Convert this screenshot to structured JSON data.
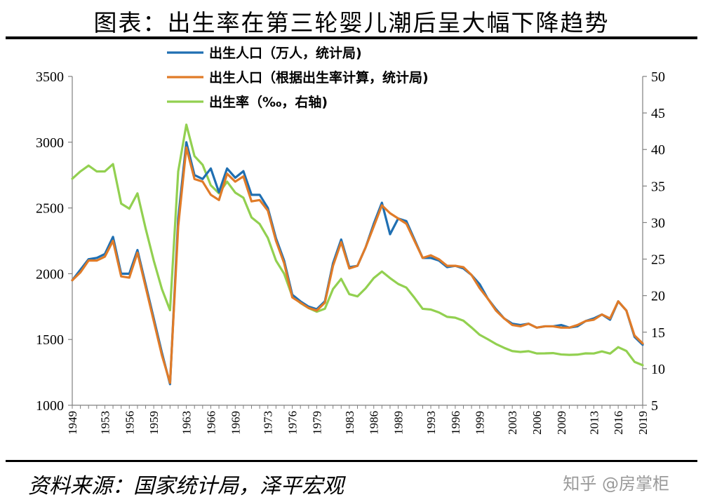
{
  "title": "图表：出生率在第三轮婴儿潮后呈大幅下降趋势",
  "source": "资料来源：国家统计局，泽平宏观",
  "watermark": "知乎 @房掌柜",
  "chart_data": {
    "type": "line",
    "x": [
      1949,
      1950,
      1951,
      1952,
      1953,
      1954,
      1955,
      1956,
      1957,
      1958,
      1959,
      1960,
      1961,
      1962,
      1963,
      1964,
      1965,
      1966,
      1967,
      1968,
      1969,
      1970,
      1971,
      1972,
      1973,
      1974,
      1975,
      1976,
      1977,
      1978,
      1979,
      1980,
      1981,
      1982,
      1983,
      1984,
      1985,
      1986,
      1987,
      1988,
      1989,
      1990,
      1991,
      1992,
      1993,
      1994,
      1995,
      1996,
      1997,
      1998,
      1999,
      2000,
      2001,
      2002,
      2003,
      2004,
      2005,
      2006,
      2007,
      2008,
      2009,
      2010,
      2011,
      2012,
      2013,
      2014,
      2015,
      2016,
      2017,
      2018,
      2019
    ],
    "x_tick_labels": [
      "1949",
      "1953",
      "1956",
      "1959",
      "1963",
      "1966",
      "1969",
      "1973",
      "1976",
      "1979",
      "1983",
      "1986",
      "1989",
      "1993",
      "1996",
      "1999",
      "2003",
      "2006",
      "2009",
      "2013",
      "2016",
      "2019"
    ],
    "left_axis": {
      "ylim": [
        1000,
        3500
      ],
      "ticks": [
        "1000",
        "1500",
        "2000",
        "2500",
        "3000",
        "3500"
      ]
    },
    "right_axis": {
      "ylim": [
        5,
        50
      ],
      "ticks": [
        "5",
        "10",
        "15",
        "20",
        "25",
        "30",
        "35",
        "40",
        "45",
        "50"
      ]
    },
    "series": [
      {
        "name": "出生人口（万人，统计局)",
        "axis": "left",
        "color": "#1f6fb2",
        "values": [
          1950,
          2030,
          2110,
          2120,
          2150,
          2280,
          2000,
          2000,
          2180,
          1920,
          1660,
          1400,
          1160,
          2420,
          3000,
          2750,
          2720,
          2800,
          2620,
          2800,
          2730,
          2780,
          2600,
          2600,
          2500,
          2270,
          2100,
          1840,
          1790,
          1750,
          1730,
          1790,
          2080,
          2260,
          2050,
          2060,
          2200,
          2380,
          2540,
          2300,
          2420,
          2400,
          2260,
          2120,
          2120,
          2100,
          2050,
          2060,
          2040,
          1990,
          1920,
          1810,
          1730,
          1660,
          1620,
          1610,
          1620,
          1590,
          1600,
          1600,
          1610,
          1590,
          1600,
          1640,
          1660,
          1690,
          1650,
          1790,
          1720,
          1520,
          1460
        ]
      },
      {
        "name": "出生人口（根据出生率计算，统计局)",
        "axis": "left",
        "color": "#e07b28",
        "values": [
          1950,
          2010,
          2100,
          2100,
          2130,
          2250,
          1980,
          1970,
          2160,
          1900,
          1640,
          1380,
          1170,
          2360,
          2960,
          2720,
          2700,
          2600,
          2560,
          2760,
          2700,
          2740,
          2550,
          2560,
          2480,
          2250,
          2080,
          1820,
          1780,
          1740,
          1720,
          1780,
          2060,
          2240,
          2040,
          2060,
          2200,
          2360,
          2520,
          2460,
          2420,
          2380,
          2250,
          2120,
          2140,
          2110,
          2060,
          2060,
          2050,
          1990,
          1890,
          1810,
          1720,
          1660,
          1610,
          1600,
          1620,
          1590,
          1600,
          1600,
          1590,
          1590,
          1610,
          1640,
          1650,
          1690,
          1660,
          1790,
          1720,
          1530,
          1470
        ]
      },
      {
        "name": "出生率（‰，右轴)",
        "axis": "right",
        "color": "#92d050",
        "values": [
          36.0,
          37.0,
          37.8,
          37.0,
          37.0,
          38.0,
          32.6,
          31.9,
          34.0,
          29.2,
          24.8,
          20.9,
          18.0,
          37.0,
          43.4,
          39.1,
          37.9,
          35.1,
          34.0,
          35.6,
          34.1,
          33.4,
          30.7,
          29.8,
          27.9,
          24.8,
          23.0,
          19.9,
          19.0,
          18.3,
          17.8,
          18.2,
          20.9,
          22.3,
          20.2,
          19.9,
          21.0,
          22.4,
          23.3,
          22.4,
          21.6,
          21.1,
          19.7,
          18.2,
          18.1,
          17.7,
          17.1,
          16.98,
          16.57,
          15.64,
          14.64,
          14.03,
          13.38,
          12.86,
          12.41,
          12.29,
          12.4,
          12.09,
          12.1,
          12.14,
          11.95,
          11.9,
          11.93,
          12.1,
          12.08,
          12.37,
          12.07,
          12.95,
          12.43,
          10.94,
          10.48
        ]
      }
    ],
    "legend_position": "top-center",
    "grid": false
  }
}
